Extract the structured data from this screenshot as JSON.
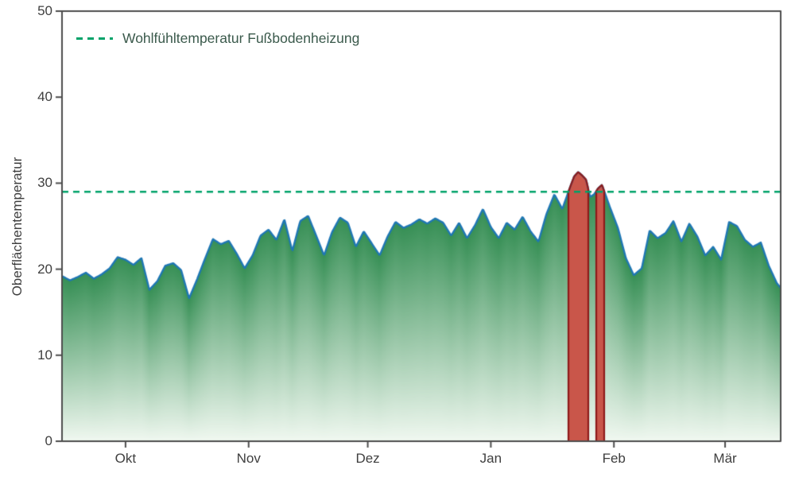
{
  "chart_data": {
    "type": "area",
    "title": "",
    "xlabel": "",
    "ylabel": "Oberflächentemperatur",
    "ylim": [
      0,
      50
    ],
    "xlim": [
      0,
      181
    ],
    "grid": false,
    "legend_position": "upper left",
    "yticks": [
      0,
      10,
      20,
      30,
      40,
      50
    ],
    "xticks": [
      {
        "label": "Okt",
        "x": 16
      },
      {
        "label": "Nov",
        "x": 47
      },
      {
        "label": "Dez",
        "x": 77
      },
      {
        "label": "Jan",
        "x": 108
      },
      {
        "label": "Feb",
        "x": 139
      },
      {
        "label": "Mär",
        "x": 167
      }
    ],
    "threshold": {
      "value": 29,
      "label": "Wohlfühltemperatur Fußbodenheizung",
      "style": "dashed"
    },
    "series": [
      {
        "name": "Oberflächentemperatur",
        "x": [
          0,
          2,
          4,
          6,
          8,
          10,
          12,
          14,
          16,
          18,
          20,
          22,
          24,
          26,
          28,
          30,
          32,
          34,
          36,
          38,
          40,
          42,
          44,
          46,
          48,
          50,
          52,
          54,
          56,
          58,
          60,
          62,
          64,
          66,
          68,
          70,
          72,
          74,
          76,
          78,
          80,
          82,
          84,
          86,
          88,
          90,
          92,
          94,
          96,
          98,
          100,
          102,
          104,
          106,
          108,
          110,
          112,
          114,
          116,
          118,
          120,
          122,
          124,
          126,
          128,
          129,
          130,
          131,
          132,
          133,
          134,
          135,
          136,
          137,
          138,
          140,
          142,
          144,
          146,
          148,
          150,
          152,
          154,
          156,
          158,
          160,
          162,
          164,
          166,
          168,
          170,
          172,
          174,
          176,
          178,
          180,
          181
        ],
        "y": [
          19.2,
          18.7,
          19.1,
          19.6,
          18.9,
          19.4,
          20.1,
          21.4,
          21.1,
          20.5,
          21.3,
          17.6,
          18.6,
          20.4,
          20.7,
          19.9,
          16.6,
          18.8,
          21.2,
          23.5,
          22.9,
          23.3,
          21.8,
          20.1,
          21.6,
          23.9,
          24.6,
          23.4,
          25.8,
          22.1,
          25.6,
          26.2,
          23.9,
          21.6,
          24.3,
          26.0,
          25.4,
          22.6,
          24.4,
          23.0,
          21.6,
          23.8,
          25.5,
          24.8,
          25.2,
          25.8,
          25.3,
          25.9,
          25.4,
          23.9,
          25.4,
          23.6,
          25.1,
          27.0,
          24.9,
          23.6,
          25.4,
          24.6,
          26.1,
          24.4,
          23.2,
          26.4,
          28.7,
          27.0,
          29.6,
          30.8,
          31.3,
          30.9,
          30.4,
          28.4,
          28.7,
          29.4,
          29.8,
          28.5,
          27.2,
          24.8,
          21.3,
          19.3,
          20.1,
          24.5,
          23.6,
          24.2,
          25.6,
          23.2,
          25.3,
          23.8,
          21.6,
          22.6,
          21.1,
          25.5,
          25.0,
          23.4,
          22.6,
          23.1,
          20.4,
          18.4,
          17.8
        ]
      }
    ],
    "colors": {
      "line": "#1f77b4",
      "area_top": "#147c38",
      "area_bottom": "#eef7ee",
      "threshold": "#00a269",
      "exceed_fill": "#c0392b",
      "exceed_edge": "#8e1a1a",
      "axis": "#4d4d4d",
      "tick_text": "#3f3f3f",
      "legend_text": "#3b5a4c"
    }
  }
}
